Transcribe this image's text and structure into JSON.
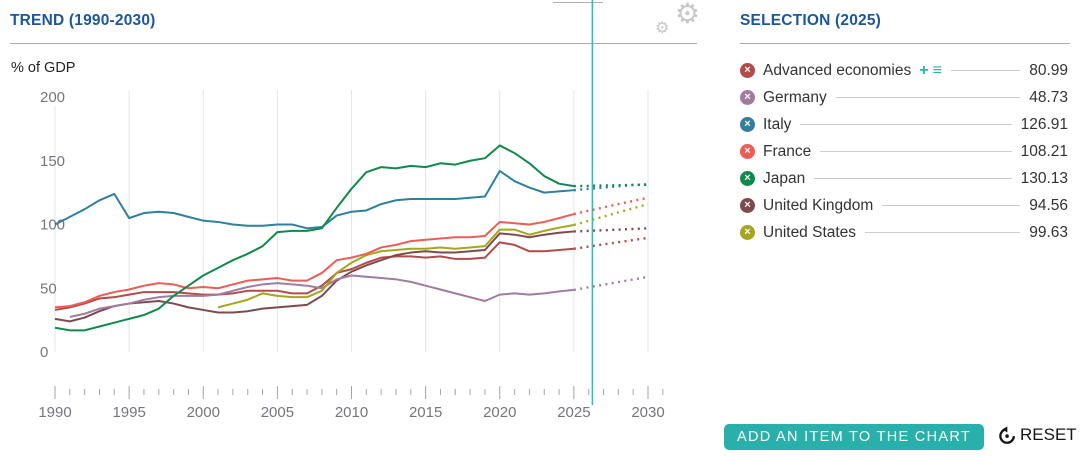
{
  "trend_panel": {
    "title": "TREND (1990-2030)",
    "y_axis_unit": "% of GDP",
    "gear_icon": "settings-gear-icon"
  },
  "selection_panel": {
    "title": "SELECTION (2025)",
    "remove_icon_glyph": "×",
    "add_icon_glyph": "+",
    "list_icon_glyph": "≡",
    "accent_teal": "#2ab3ae",
    "items": [
      {
        "label": "Advanced economies",
        "value": "80.99",
        "color": "#b34b4a",
        "has_add_icons": true
      },
      {
        "label": "Germany",
        "value": "48.73",
        "color": "#a27ba0"
      },
      {
        "label": "Italy",
        "value": "126.91",
        "color": "#2f7fa0"
      },
      {
        "label": "France",
        "value": "108.21",
        "color": "#ef5b55"
      },
      {
        "label": "Japan",
        "value": "130.13",
        "color": "#0f8a4a"
      },
      {
        "label": "United Kingdom",
        "value": "94.56",
        "color": "#7f4a4e"
      },
      {
        "label": "United States",
        "value": "99.63",
        "color": "#a6a51d"
      }
    ],
    "add_button_label": "ADD AN ITEM TO THE CHART",
    "reset_label": "RESET"
  },
  "chart_data": {
    "type": "line",
    "title": "TREND (1990-2030)",
    "ylabel": "% of GDP",
    "ylim": [
      0,
      200
    ],
    "y_ticks": [
      0,
      50,
      100,
      150,
      200
    ],
    "x_ticks_major": [
      1990,
      1995,
      2000,
      2005,
      2010,
      2015,
      2020,
      2025,
      2030
    ],
    "x_range": [
      1990,
      2031
    ],
    "grid": "vertical-only",
    "projection_style": "dotted",
    "projection_start_year": 2025,
    "cursor_year": 2026.25,
    "cursor_color": "#2fb9c9",
    "series": [
      {
        "name": "Advanced economies",
        "color": "#b34b4a",
        "start_year": 1990,
        "values_solid": [
          33,
          35,
          38,
          42,
          43,
          45,
          47,
          47,
          47,
          46,
          45,
          45,
          46,
          48,
          48,
          48,
          46,
          46,
          52,
          62,
          65,
          70,
          74,
          75,
          75,
          74,
          75,
          73,
          73,
          74,
          86,
          84,
          79,
          79,
          80,
          80.99
        ],
        "values_projection": [
          80.99,
          82.7,
          84.4,
          86.1,
          87.8,
          89.5
        ]
      },
      {
        "name": "United Kingdom",
        "color": "#7f4a4e",
        "start_year": 1990,
        "values_solid": [
          26,
          24,
          27,
          32,
          36,
          38,
          39,
          40,
          38,
          35,
          33,
          31,
          31,
          32,
          34,
          35,
          36,
          37,
          44,
          56,
          63,
          68,
          72,
          76,
          78,
          79,
          78,
          78,
          79,
          80,
          93,
          92,
          90,
          92,
          93.5,
          94.56
        ],
        "values_projection": [
          94.56,
          95,
          95.5,
          96,
          96.5,
          97
        ]
      },
      {
        "name": "Germany",
        "color": "#a27ba0",
        "start_year": 1991,
        "values_solid": [
          27.5,
          30,
          34,
          36,
          38,
          41,
          43,
          44,
          44,
          44,
          45,
          48,
          51,
          53,
          54,
          53,
          52,
          50,
          57,
          60,
          59,
          58,
          57,
          55,
          52,
          49,
          46,
          43,
          40,
          45,
          46,
          45,
          46,
          47.5,
          48.73
        ],
        "values_projection": [
          48.73,
          50.8,
          52.8,
          54.8,
          56.9,
          59
        ]
      },
      {
        "name": "United States",
        "color": "#a6a51d",
        "start_year": 2001,
        "values_solid": [
          35,
          38,
          41,
          46,
          44,
          43,
          43,
          48,
          62,
          70,
          76,
          79,
          80,
          81,
          81,
          82,
          81,
          82,
          83,
          96,
          96,
          92,
          95,
          97.5,
          99.63
        ],
        "values_projection": [
          99.63,
          102.9,
          106.2,
          109.5,
          112.7,
          116
        ]
      },
      {
        "name": "France",
        "color": "#ef5b55",
        "start_year": 1990,
        "values_solid": [
          35,
          36,
          39,
          44,
          47,
          49,
          52,
          54,
          53,
          50,
          51,
          50,
          53,
          56,
          57,
          58,
          56,
          56,
          62,
          72,
          74,
          77,
          82,
          84,
          87,
          88,
          89,
          90,
          90,
          91,
          102,
          101,
          100,
          102,
          105,
          108.21
        ],
        "values_projection": [
          108.21,
          110.8,
          113.4,
          116,
          118.5,
          121
        ]
      },
      {
        "name": "Italy",
        "color": "#2f7fa0",
        "start_year": 1990,
        "values_solid": [
          100,
          106,
          112,
          119,
          124,
          105,
          109,
          110,
          109,
          106,
          103,
          102,
          100,
          99,
          99,
          100,
          100,
          97,
          98,
          107,
          110,
          111,
          116,
          119,
          120,
          120,
          120,
          120,
          121,
          122,
          142,
          134,
          129,
          125,
          126,
          126.91
        ],
        "values_projection": [
          126.91,
          128,
          129,
          130,
          131,
          131.5
        ]
      },
      {
        "name": "Japan",
        "color": "#0f8a4a",
        "start_year": 1990,
        "values_solid": [
          19,
          17,
          17,
          20,
          23,
          26,
          29,
          34,
          44,
          52,
          60,
          66,
          72,
          77,
          83,
          94,
          95,
          95,
          97,
          113,
          128,
          141,
          145,
          144,
          146,
          145,
          148,
          147,
          150,
          152,
          162,
          156,
          148,
          138,
          132,
          130.13
        ],
        "values_projection": [
          130.13,
          130.3,
          130.6,
          130.8,
          131,
          131.2
        ]
      }
    ]
  }
}
